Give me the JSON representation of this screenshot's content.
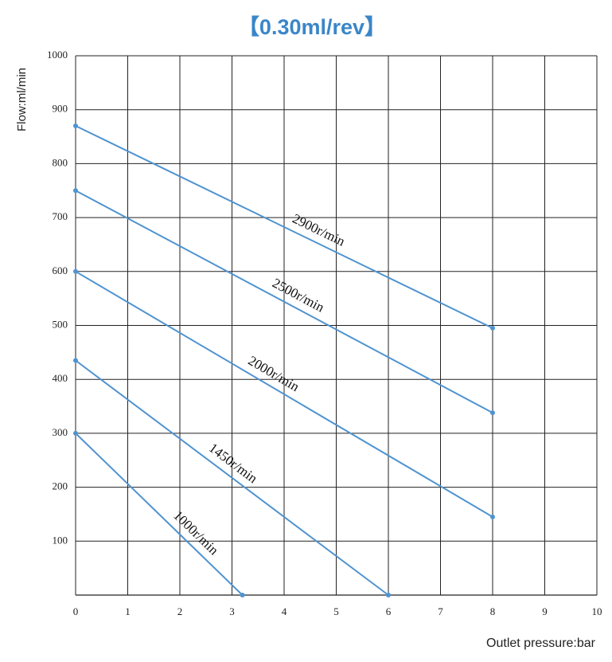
{
  "chart_data": {
    "type": "line",
    "title": "【0.30ml/rev】",
    "x_label": "Outlet pressure:bar",
    "y_label": "Flow:ml/min",
    "xlim": [
      0,
      10
    ],
    "xticks": [
      0,
      1,
      2,
      3,
      4,
      5,
      6,
      7,
      8,
      9,
      10
    ],
    "ylim": [
      0,
      1000
    ],
    "yticks": [
      100,
      200,
      300,
      400,
      500,
      600,
      700,
      800,
      900,
      1000
    ],
    "grid": true,
    "series": [
      {
        "name": "2900r/min",
        "color": "#4f93d0",
        "x": [
          0,
          8
        ],
        "values": [
          870,
          495
        ]
      },
      {
        "name": "2500r/min",
        "color": "#4f93d0",
        "x": [
          0,
          8
        ],
        "values": [
          750,
          338
        ]
      },
      {
        "name": "2000r/min",
        "color": "#4f93d0",
        "x": [
          0,
          8
        ],
        "values": [
          600,
          145
        ]
      },
      {
        "name": "1450r/min",
        "color": "#4f93d0",
        "x": [
          0,
          6
        ],
        "values": [
          435,
          0
        ]
      },
      {
        "name": "1000r/min",
        "color": "#4f93d0",
        "x": [
          0,
          3.2
        ],
        "values": [
          300,
          0
        ]
      }
    ]
  }
}
